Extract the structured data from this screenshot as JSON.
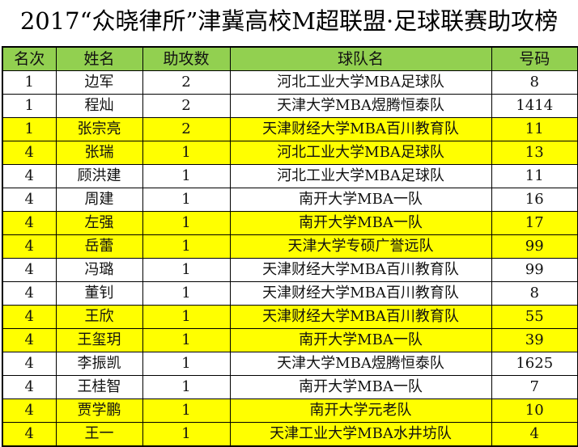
{
  "title": "2017“众晓律所”津冀高校M超联盟·足球联赛助攻榜",
  "colors": {
    "header": "#92D050",
    "highlight": "#FFFF00"
  },
  "columns": [
    "名次",
    "姓名",
    "助攻数",
    "球队名",
    "号码"
  ],
  "rows": [
    {
      "rank": "1",
      "name": "边军",
      "assists": "2",
      "team": "河北工业大学MBA足球队",
      "number": "8",
      "highlight": false
    },
    {
      "rank": "1",
      "name": "程灿",
      "assists": "2",
      "team": "天津大学MBA煜腾恒泰队",
      "number": "1414",
      "highlight": false
    },
    {
      "rank": "1",
      "name": "张宗亮",
      "assists": "2",
      "team": "天津财经大学MBA百川教育队",
      "number": "11",
      "highlight": true
    },
    {
      "rank": "4",
      "name": "张瑞",
      "assists": "1",
      "team": "河北工业大学MBA足球队",
      "number": "13",
      "highlight": true
    },
    {
      "rank": "4",
      "name": "顾洪建",
      "assists": "1",
      "team": "河北工业大学MBA足球队",
      "number": "11",
      "highlight": false
    },
    {
      "rank": "4",
      "name": "周建",
      "assists": "1",
      "team": "南开大学MBA一队",
      "number": "16",
      "highlight": false
    },
    {
      "rank": "4",
      "name": "左强",
      "assists": "1",
      "team": "南开大学MBA一队",
      "number": "17",
      "highlight": true
    },
    {
      "rank": "4",
      "name": "岳蕾",
      "assists": "1",
      "team": "天津大学专硕广誉远队",
      "number": "99",
      "highlight": true
    },
    {
      "rank": "4",
      "name": "冯璐",
      "assists": "1",
      "team": "天津财经大学MBA百川教育队",
      "number": "99",
      "highlight": false
    },
    {
      "rank": "4",
      "name": "董钊",
      "assists": "1",
      "team": "天津财经大学MBA百川教育队",
      "number": "8",
      "highlight": false
    },
    {
      "rank": "4",
      "name": "王欣",
      "assists": "1",
      "team": "天津财经大学MBA百川教育队",
      "number": "55",
      "highlight": true
    },
    {
      "rank": "4",
      "name": "王玺玥",
      "assists": "1",
      "team": "南开大学MBA一队",
      "number": "39",
      "highlight": true
    },
    {
      "rank": "4",
      "name": "李振凯",
      "assists": "1",
      "team": "天津大学MBA煜腾恒泰队",
      "number": "1625",
      "highlight": false
    },
    {
      "rank": "4",
      "name": "王桂智",
      "assists": "1",
      "team": "南开大学MBA一队",
      "number": "7",
      "highlight": false
    },
    {
      "rank": "4",
      "name": "贾学鹏",
      "assists": "1",
      "team": "南开大学元老队",
      "number": "10",
      "highlight": true
    },
    {
      "rank": "4",
      "name": "王一",
      "assists": "1",
      "team": "天津工业大学MBA水井坊队",
      "number": "4",
      "highlight": true
    }
  ]
}
